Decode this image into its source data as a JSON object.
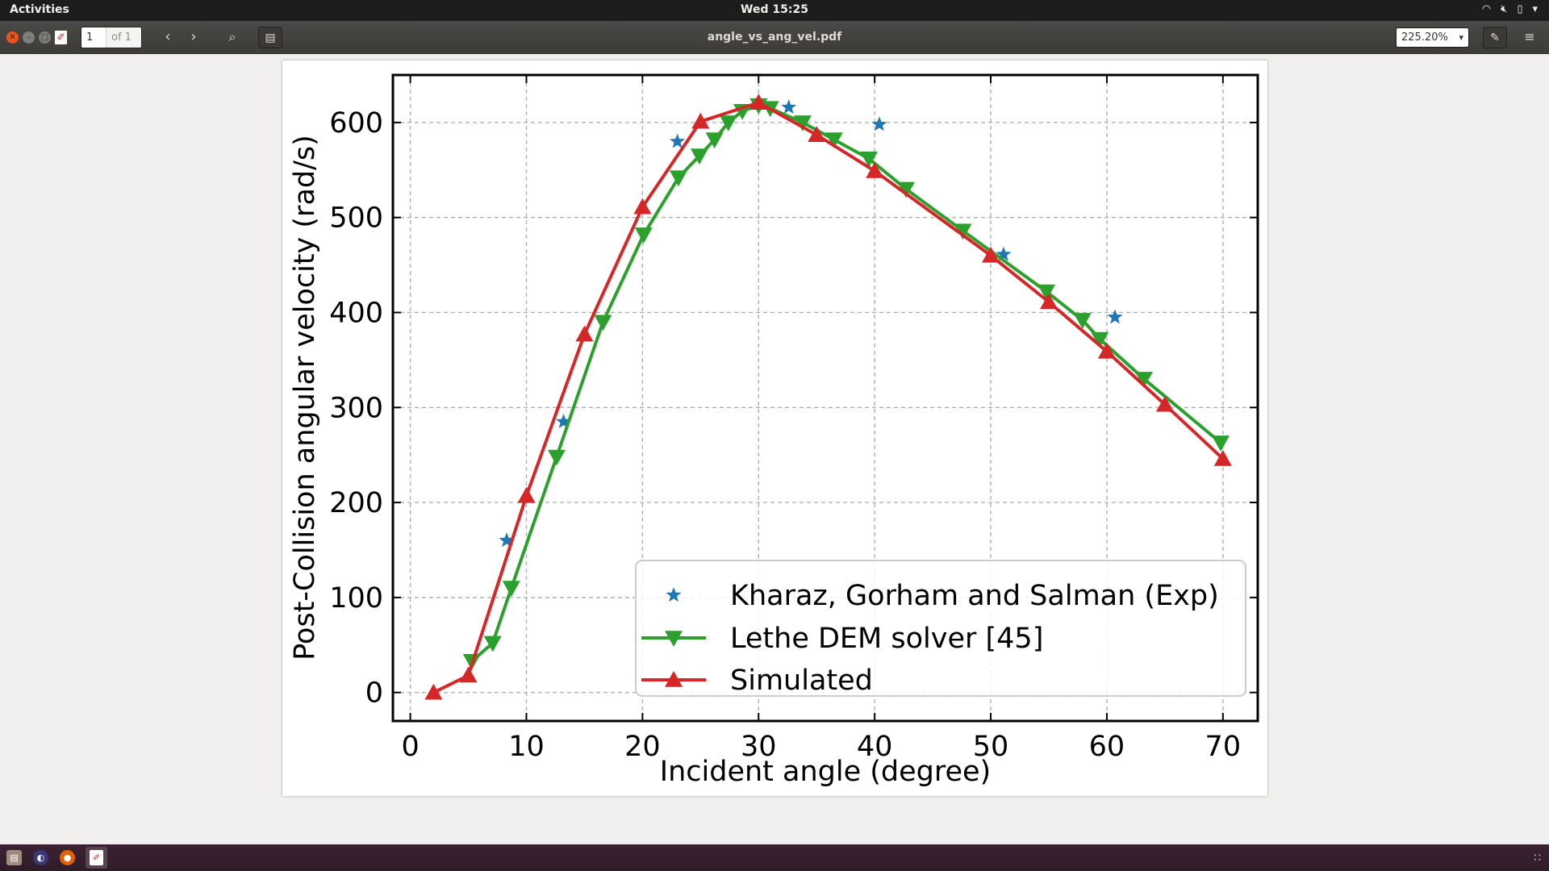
{
  "topbar": {
    "activities": "Activities",
    "clock": "Wed 15:25"
  },
  "toolbar": {
    "page_current": "1",
    "page_of": "of 1",
    "document_title": "angle_vs_ang_vel.pdf",
    "zoom": "225.20%"
  },
  "icons": {
    "close": "close-icon",
    "minimize": "minimize-icon",
    "maximize": "maximize-icon",
    "prev": "chevron-left-icon",
    "next": "chevron-right-icon",
    "search": "search-icon",
    "sidebar": "sidebar-icon",
    "annotate": "annotate-icon",
    "menu": "hamburger-menu-icon"
  },
  "chart_data": {
    "type": "line",
    "title": "",
    "xlabel": "Incident angle (degree)",
    "ylabel": "Post-Collision angular velocity (rad/s)",
    "xlim": [
      -1.5,
      73
    ],
    "ylim": [
      -30,
      650
    ],
    "xticks": [
      0,
      10,
      20,
      30,
      40,
      50,
      60,
      70
    ],
    "yticks": [
      0,
      100,
      200,
      300,
      400,
      500,
      600
    ],
    "grid": true,
    "legend_position": "lower right",
    "series": [
      {
        "name": "Kharaz, Gorham and Salman (Exp)",
        "marker": "star",
        "line": false,
        "color": "#1f77b4",
        "x": [
          8.3,
          13.2,
          23,
          32.6,
          40.4,
          51.1,
          60.7
        ],
        "y": [
          160,
          285,
          580,
          616,
          598,
          461,
          395
        ]
      },
      {
        "name": "Lethe DEM solver [45]",
        "marker": "triangle-down",
        "line": true,
        "color": "#2ca02c",
        "x": [
          5.3,
          7.1,
          8.7,
          12.6,
          16.6,
          20.1,
          23.1,
          24.9,
          26.2,
          27.4,
          28.6,
          30.0,
          31.0,
          33.8,
          36.5,
          39.5,
          42.7,
          47.6,
          54.8,
          57.9,
          59.4,
          63.2,
          69.8
        ],
        "y": [
          33,
          52,
          110,
          248,
          390,
          482,
          542,
          565,
          582,
          600,
          612,
          618,
          615,
          600,
          582,
          562,
          530,
          486,
          422,
          392,
          372,
          330,
          263
        ]
      },
      {
        "name": "Simulated",
        "marker": "triangle-up",
        "line": true,
        "color": "#d62728",
        "x": [
          2,
          5,
          10,
          15,
          20,
          25,
          30,
          35,
          40,
          50,
          55,
          60,
          65,
          70
        ],
        "y": [
          0,
          18,
          207,
          377,
          511,
          601,
          621,
          587,
          549,
          460,
          411,
          359,
          303,
          246
        ]
      }
    ]
  }
}
